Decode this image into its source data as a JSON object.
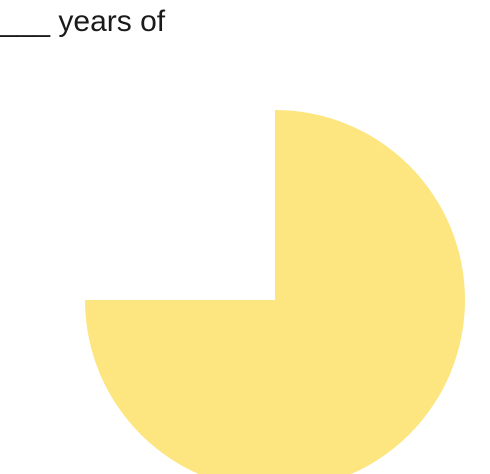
{
  "prompt_text": "___ years of",
  "colors": {
    "slice": "#fde57f",
    "text": "#1a1a1a"
  },
  "shape": {
    "filled_fraction": 0.75,
    "missing_quadrant": "top-left"
  }
}
